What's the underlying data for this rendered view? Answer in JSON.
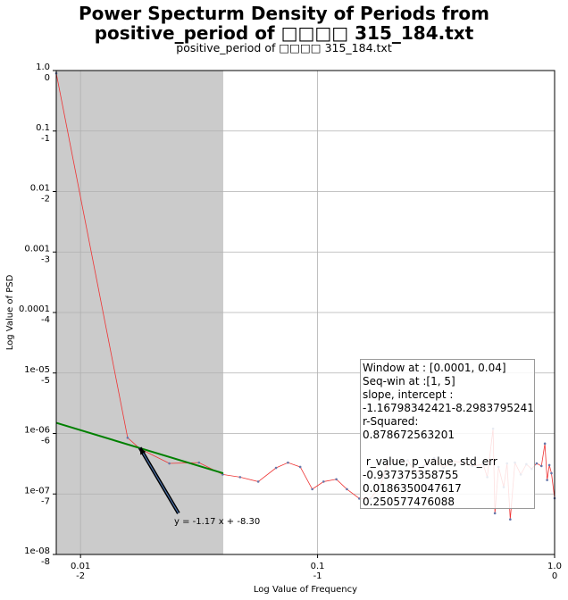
{
  "title_line1": "Power Specturm Density of Periods from",
  "title_line2": "positive_period of □□□□ 315_184.txt",
  "subtitle": "positive_period of □□□□ 315_184.txt",
  "stats_text": "Window at : [0.0001, 0.04]\nSeq-win at :[1, 5]\nslope, intercept :\n-1.16798342421-8.2983795241\nr-Squared:\n0.878672563201\n\n r_value, p_value, std_err\n-0.937375358755\n0.0186350047617\n0.250577476088",
  "annotation": "y = -1.17 x + -8.30",
  "chart_data": {
    "type": "line",
    "xlabel": "Log Value of Frequency",
    "ylabel": "Log Value of PSD",
    "x_scale": "log",
    "y_scale": "log",
    "xlim": [
      0.0079,
      1.0
    ],
    "ylim": [
      1e-08,
      1.0
    ],
    "grid": true,
    "x_ticks": [
      {
        "value": 0.01,
        "label": "0.01",
        "sublabel": "-2"
      },
      {
        "value": 0.1,
        "label": "0.1",
        "sublabel": "-1"
      },
      {
        "value": 1.0,
        "label": "1.0",
        "sublabel": "0"
      }
    ],
    "y_ticks": [
      {
        "value": 1.0,
        "label": "1.0",
        "sublabel": "0"
      },
      {
        "value": 0.1,
        "label": "0.1",
        "sublabel": "-1"
      },
      {
        "value": 0.01,
        "label": "0.01",
        "sublabel": "-2"
      },
      {
        "value": 0.001,
        "label": "0.001",
        "sublabel": "-3"
      },
      {
        "value": 0.0001,
        "label": "0.0001",
        "sublabel": "-4"
      },
      {
        "value": 1e-05,
        "label": "1e-05",
        "sublabel": "-5"
      },
      {
        "value": 1e-06,
        "label": "1e-06",
        "sublabel": "-6"
      },
      {
        "value": 1e-07,
        "label": "1e-07",
        "sublabel": "-7"
      },
      {
        "value": 1e-08,
        "label": "1e-08",
        "sublabel": "-8"
      }
    ],
    "shaded_region": {
      "x": [
        0.0079,
        0.04
      ],
      "color": "#cbcbcb"
    },
    "series": [
      {
        "color": "#ee3333",
        "points": [
          [
            0.0079,
            0.9
          ],
          [
            0.0158,
            8.5e-07
          ],
          [
            0.0178,
            5.6e-07
          ],
          [
            0.0237,
            3.2e-07
          ],
          [
            0.0316,
            3.3e-07
          ],
          [
            0.0398,
            2.1e-07
          ],
          [
            0.0471,
            1.9e-07
          ],
          [
            0.0562,
            1.6e-07
          ],
          [
            0.0668,
            2.7e-07
          ],
          [
            0.075,
            3.3e-07
          ],
          [
            0.0845,
            2.8e-07
          ],
          [
            0.095,
            1.2e-07
          ],
          [
            0.106,
            1.6e-07
          ],
          [
            0.12,
            1.75e-07
          ],
          [
            0.133,
            1.2e-07
          ],
          [
            0.15,
            8.4e-08
          ],
          [
            0.167,
            8.4e-08
          ],
          [
            0.183,
            1.3e-07
          ],
          [
            0.2,
            3.6e-07
          ],
          [
            0.22,
            3.3e-07
          ],
          [
            0.24,
            3.6e-07
          ],
          [
            0.26,
            2.2e-07
          ],
          [
            0.28,
            2.9e-07
          ],
          [
            0.31,
            3.9e-07
          ],
          [
            0.34,
            2.7e-07
          ],
          [
            0.37,
            3.5e-07
          ],
          [
            0.41,
            3.3e-07
          ],
          [
            0.45,
            2.9e-07
          ],
          [
            0.5,
            3.1e-07
          ],
          [
            0.52,
            1.9e-07
          ],
          [
            0.55,
            1.2e-06
          ],
          [
            0.56,
            4.8e-08
          ],
          [
            0.58,
            2.8e-07
          ],
          [
            0.61,
            1.3e-07
          ],
          [
            0.63,
            3.2e-07
          ],
          [
            0.65,
            3.8e-08
          ],
          [
            0.68,
            3.3e-07
          ],
          [
            0.72,
            2.1e-07
          ],
          [
            0.76,
            3.1e-07
          ],
          [
            0.8,
            2.6e-07
          ],
          [
            0.84,
            3.2e-07
          ],
          [
            0.88,
            2.9e-07
          ],
          [
            0.91,
            6.8e-07
          ],
          [
            0.93,
            1.7e-07
          ],
          [
            0.95,
            3e-07
          ],
          [
            0.97,
            2.2e-07
          ],
          [
            1.0,
            8.5e-08
          ]
        ]
      },
      {
        "color": "#008000",
        "name": "",
        "points": [
          [
            0.0079,
            1.5e-06
          ],
          [
            0.04,
            2.2e-07
          ]
        ]
      }
    ],
    "arrow": {
      "from": [
        0.0259,
        4.8e-08
      ],
      "to": [
        0.0178,
        5.8e-07
      ],
      "color": "#000000"
    }
  }
}
